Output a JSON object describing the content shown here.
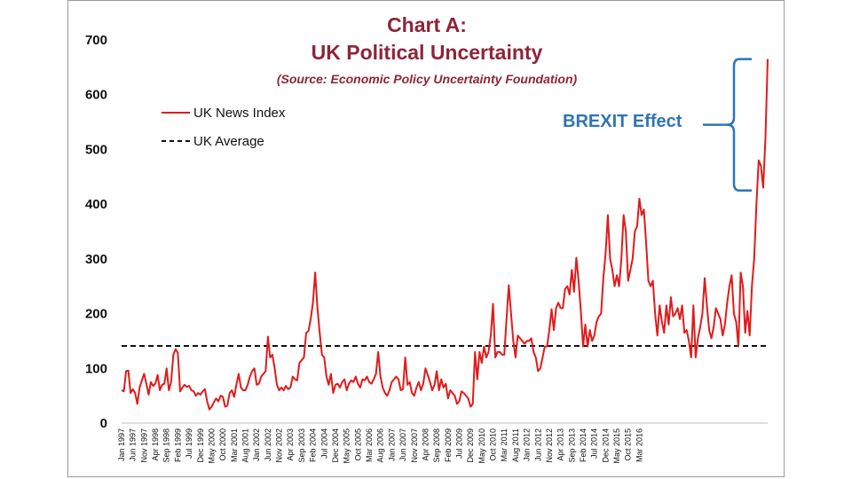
{
  "chart_data": {
    "type": "line",
    "title": "Chart A:",
    "subtitle": "UK Political Uncertainty",
    "source": "(Source: Economic Policy Uncertainty Foundation)",
    "ylim": [
      0,
      700
    ],
    "yticks": [
      0,
      100,
      200,
      300,
      400,
      500,
      600,
      700
    ],
    "grid": false,
    "legend_position": "top-left",
    "start": "Jan 1997",
    "x_tick_labels": [
      "Jan 1997",
      "Jun 1997",
      "Nov 1997",
      "Apr 1998",
      "Sep 1998",
      "Feb 1999",
      "Jul 1999",
      "Dec 1999",
      "May 2000",
      "Oct 2000",
      "Mar 2001",
      "Aug 2001",
      "Jan 2002",
      "Jun 2002",
      "Nov 2002",
      "Apr 2003",
      "Sep 2003",
      "Feb 2004",
      "Jul 2004",
      "Dec 2004",
      "May 2005",
      "Oct 2005",
      "Mar 2006",
      "Aug 2006",
      "Jan 2007",
      "Jun 2007",
      "Nov 2007",
      "Apr 2008",
      "Sep 2008",
      "Feb 2009",
      "Jul 2009",
      "Dec 2009",
      "May 2010",
      "Oct 2010",
      "Mar 2011",
      "Aug 2011",
      "Jan 2012",
      "Jun 2012",
      "Nov 2012",
      "Apr 2013",
      "Sep 2013",
      "Feb 2014",
      "Jul 2014",
      "Dec 2014",
      "May 2015",
      "Oct 2015",
      "Mar 2016"
    ],
    "series": [
      {
        "name": "UK News Index",
        "color": "#e01b1b",
        "style": "solid",
        "values": [
          60,
          58,
          95,
          96,
          55,
          62,
          55,
          35,
          65,
          78,
          90,
          72,
          52,
          75,
          68,
          72,
          88,
          60,
          70,
          72,
          100,
          60,
          75,
          125,
          135,
          128,
          58,
          65,
          70,
          66,
          68,
          60,
          58,
          50,
          55,
          52,
          58,
          62,
          40,
          25,
          30,
          38,
          45,
          40,
          50,
          48,
          30,
          32,
          55,
          60,
          48,
          70,
          90,
          65,
          60,
          60,
          70,
          85,
          95,
          100,
          70,
          72,
          85,
          90,
          95,
          158,
          120,
          125,
          100,
          70,
          60,
          65,
          60,
          68,
          62,
          65,
          85,
          80,
          78,
          110,
          115,
          120,
          165,
          168,
          190,
          220,
          275,
          210,
          165,
          125,
          120,
          85,
          70,
          90,
          55,
          70,
          72,
          65,
          75,
          80,
          60,
          72,
          78,
          75,
          85,
          72,
          65,
          80,
          78,
          85,
          75,
          72,
          80,
          90,
          130,
          85,
          65,
          55,
          50,
          60,
          75,
          80,
          85,
          80,
          60,
          62,
          120,
          70,
          75,
          55,
          50,
          65,
          75,
          60,
          72,
          100,
          88,
          75,
          60,
          70,
          95,
          60,
          80,
          65,
          72,
          45,
          60,
          55,
          50,
          35,
          40,
          58,
          55,
          50,
          45,
          30,
          35,
          130,
          80,
          130,
          110,
          140,
          120,
          130,
          160,
          218,
          120,
          130,
          130,
          125,
          125,
          190,
          252,
          200,
          150,
          120,
          160,
          155,
          150,
          145,
          150,
          150,
          155,
          130,
          120,
          95,
          100,
          120,
          140,
          140,
          170,
          208,
          170,
          210,
          220,
          210,
          210,
          245,
          250,
          235,
          280,
          240,
          302,
          260,
          205,
          140,
          180,
          140,
          170,
          150,
          160,
          185,
          195,
          200,
          265,
          310,
          380,
          300,
          280,
          250,
          270,
          250,
          300,
          380,
          350,
          260,
          280,
          300,
          350,
          360,
          410,
          380,
          390,
          330,
          260,
          250,
          260,
          200,
          160,
          215,
          185,
          165,
          215,
          180,
          230,
          195,
          200,
          210,
          190,
          215,
          165,
          170,
          150,
          120,
          215,
          120,
          155,
          175,
          200,
          265,
          215,
          170,
          155,
          175,
          210,
          200,
          190,
          160,
          180,
          220,
          250,
          270,
          200,
          185,
          140,
          275,
          250,
          165,
          205,
          160,
          250,
          300,
          400,
          480,
          470,
          430,
          520,
          665
        ]
      },
      {
        "name": "UK Average",
        "color": "#111111",
        "style": "dashed",
        "values": [
          141
        ]
      }
    ],
    "annotations": [
      {
        "text": "BREXIT Effect",
        "color": "#2e75b6",
        "bracket_y": [
          425,
          665
        ]
      }
    ]
  }
}
